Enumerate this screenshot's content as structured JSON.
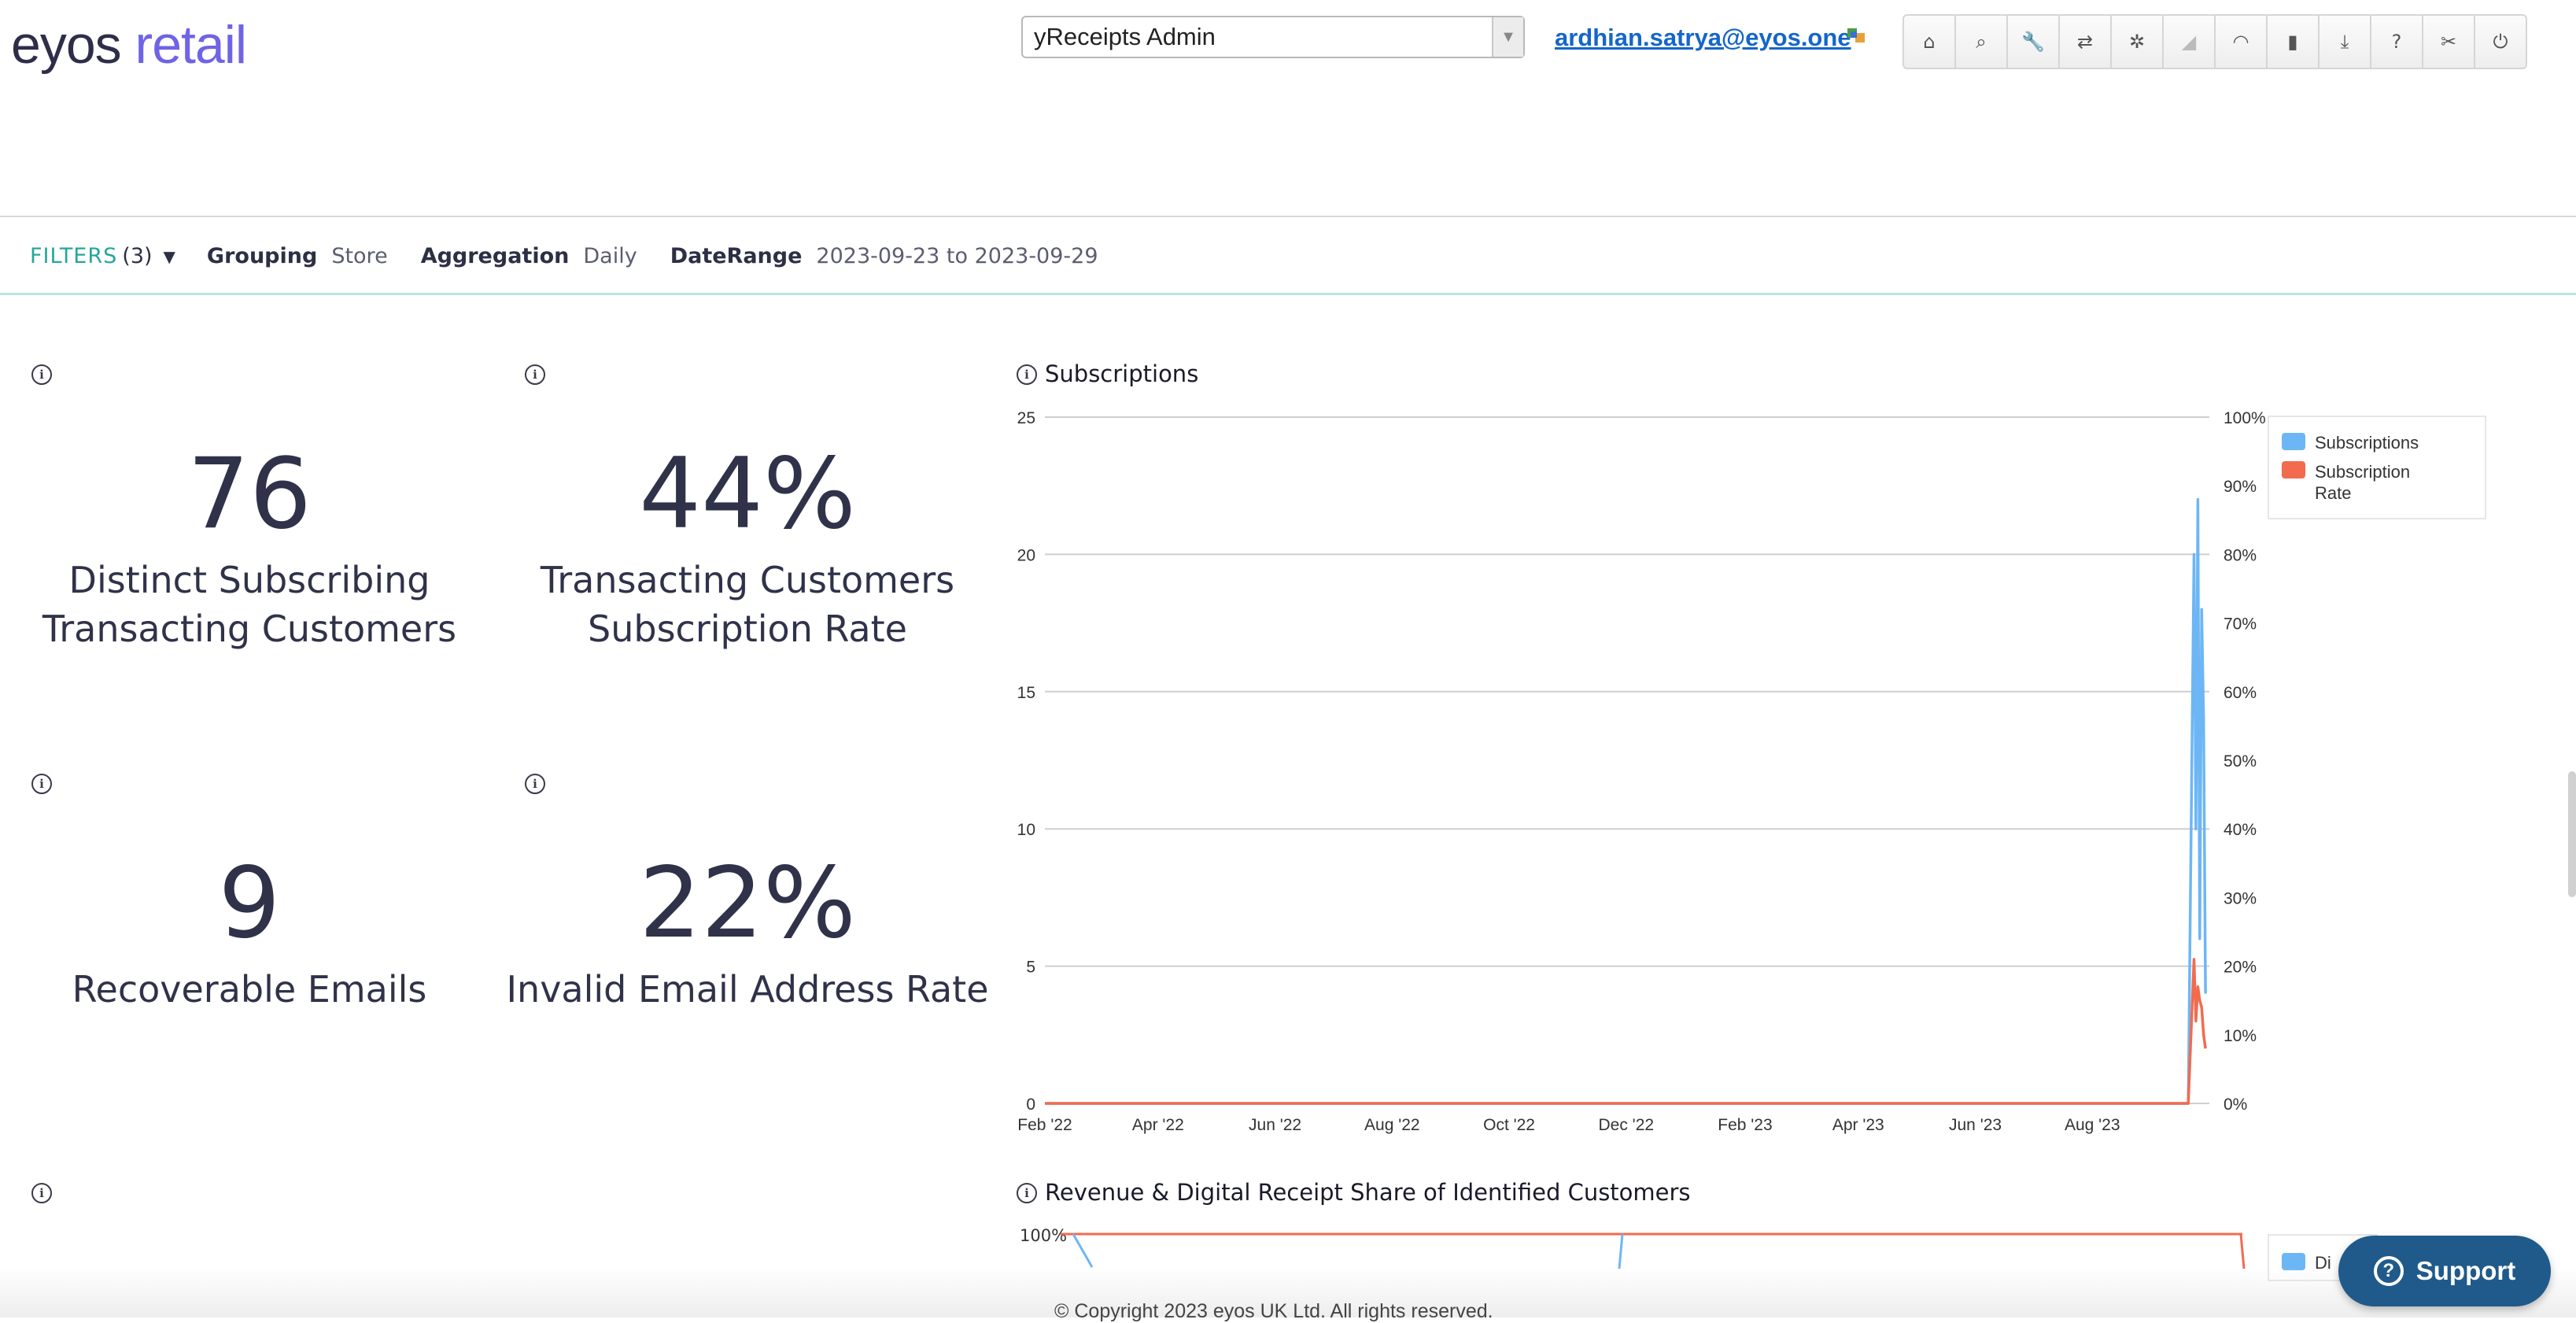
{
  "header": {
    "logo_part1": "eyos",
    "logo_part2": "retail",
    "app_select_value": "yReceipts Admin",
    "user_email": "ardhian.satrya@eyos.one",
    "toolbar_icons": [
      "home-icon",
      "search-icon",
      "wrench-icon",
      "exchange-icon",
      "gear-icon",
      "signal-icon",
      "rss-icon",
      "book-icon",
      "download-icon",
      "help-icon",
      "scissors-icon",
      "power-icon"
    ],
    "toolbar_glyphs": [
      "⌂",
      "⌕",
      "🔧",
      "⇄",
      "✲",
      "◢",
      "◠",
      "▮",
      "⤓",
      "?",
      "✂",
      "⏻"
    ]
  },
  "filters": {
    "label": "FILTERS",
    "count": "(3)",
    "grouping_key": "Grouping",
    "grouping_value": "Store",
    "aggregation_key": "Aggregation",
    "aggregation_value": "Daily",
    "daterange_key": "DateRange",
    "daterange_value": "2023-09-23 to 2023-09-29"
  },
  "kpis": [
    {
      "value": "76",
      "line1": "Distinct Subscribing",
      "line2": "Transacting Customers"
    },
    {
      "value": "44%",
      "line1": "Transacting Customers",
      "line2": "Subscription Rate"
    },
    {
      "value": "9",
      "line1": "Recoverable Emails",
      "line2": ""
    },
    {
      "value": "22%",
      "line1": "Invalid Email Address Rate",
      "line2": ""
    }
  ],
  "chart_data": [
    {
      "type": "line",
      "title": "Subscriptions",
      "x_ticks": [
        "Feb '22",
        "Apr '22",
        "Jun '22",
        "Aug '22",
        "Oct '22",
        "Dec '22",
        "Feb '23",
        "Apr '23",
        "Jun '23",
        "Aug '23"
      ],
      "y_left_ticks": [
        "0",
        "5",
        "10",
        "15",
        "20",
        "25"
      ],
      "y_right_ticks": [
        "0%",
        "10%",
        "20%",
        "30%",
        "40%",
        "50%",
        "60%",
        "70%",
        "80%",
        "90%",
        "100%"
      ],
      "ylim_left": [
        0,
        25
      ],
      "ylim_right": [
        0,
        100
      ],
      "grid": true,
      "legend_position": "top-right",
      "series": [
        {
          "name": "Subscriptions",
          "color": "#6db6f5",
          "axis": "left",
          "x": [
            "2022-02-01",
            "2023-09-20",
            "2023-09-23",
            "2023-09-24",
            "2023-09-25",
            "2023-09-26",
            "2023-09-27",
            "2023-09-28",
            "2023-09-29"
          ],
          "values": [
            0,
            0,
            20,
            10,
            22,
            6,
            18,
            14,
            4
          ]
        },
        {
          "name": "Subscription Rate",
          "color": "#f26b4f",
          "axis": "right",
          "x": [
            "2022-02-01",
            "2023-09-20",
            "2023-09-23",
            "2023-09-24",
            "2023-09-25",
            "2023-09-26",
            "2023-09-27",
            "2023-09-28",
            "2023-09-29"
          ],
          "values": [
            0,
            0,
            21,
            12,
            17,
            15,
            14,
            10,
            8
          ]
        }
      ]
    },
    {
      "type": "line",
      "title": "Revenue & Digital Receipt Share of Identified Customers",
      "y_right_ticks": [
        "100%"
      ],
      "legend_position": "top-right",
      "series": [
        {
          "name": "Di",
          "color": "#6db6f5"
        },
        {
          "name": "",
          "color": "#f26b4f"
        }
      ]
    }
  ],
  "footer": {
    "copyright": "© Copyright 2023 eyos UK Ltd. All rights reserved.",
    "support_label": "Support"
  }
}
